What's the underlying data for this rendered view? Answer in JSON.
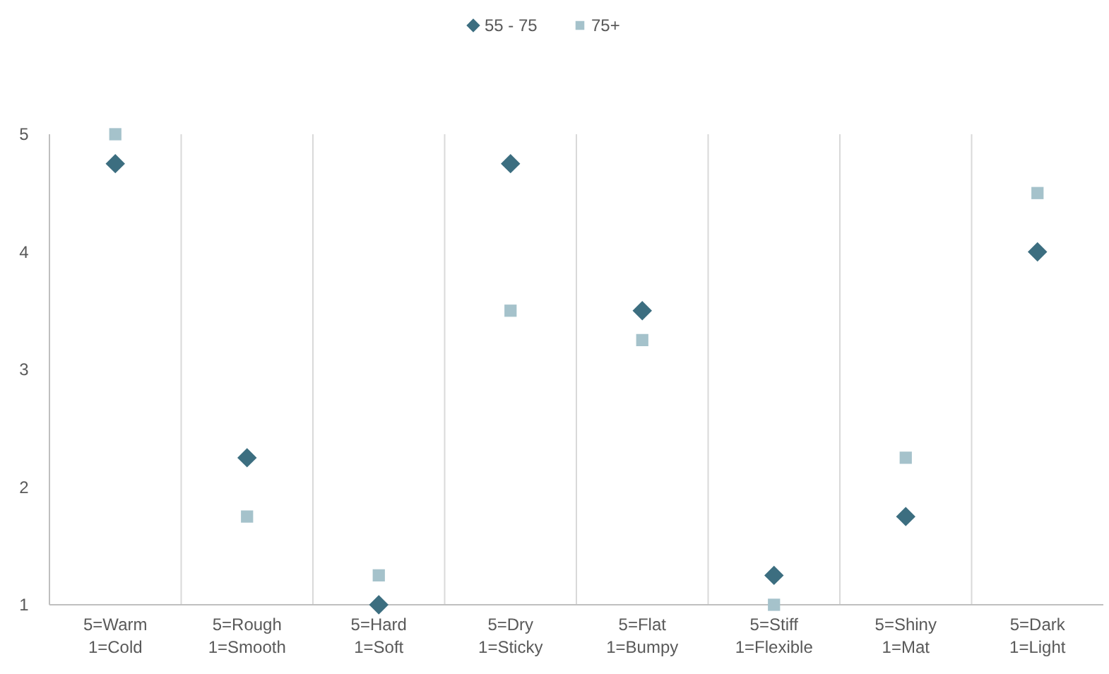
{
  "chart_data": {
    "type": "scatter",
    "categories": [
      "5=Warm\n1=Cold",
      "5=Rough\n1=Smooth",
      "5=Hard\n1=Soft",
      "5=Dry\n1=Sticky",
      "5=Flat\n1=Bumpy",
      "5=Stiff\n1=Flexible",
      "5=Shiny\n1=Mat",
      "5=Dark\n1=Light"
    ],
    "series": [
      {
        "name": "55 - 75",
        "color": "#3c6e80",
        "marker": "diamond",
        "values": [
          4.75,
          2.25,
          1,
          4.75,
          3.5,
          1.25,
          1.75,
          4
        ]
      },
      {
        "name": "75+",
        "color": "#a5c2cb",
        "marker": "square",
        "values": [
          5,
          1.75,
          1.25,
          3.5,
          3.25,
          1,
          2.25,
          4.5
        ]
      }
    ],
    "ylim": [
      1,
      5
    ],
    "yticks": [
      1,
      2,
      3,
      4,
      5
    ],
    "grid": "x",
    "legend": "top"
  }
}
